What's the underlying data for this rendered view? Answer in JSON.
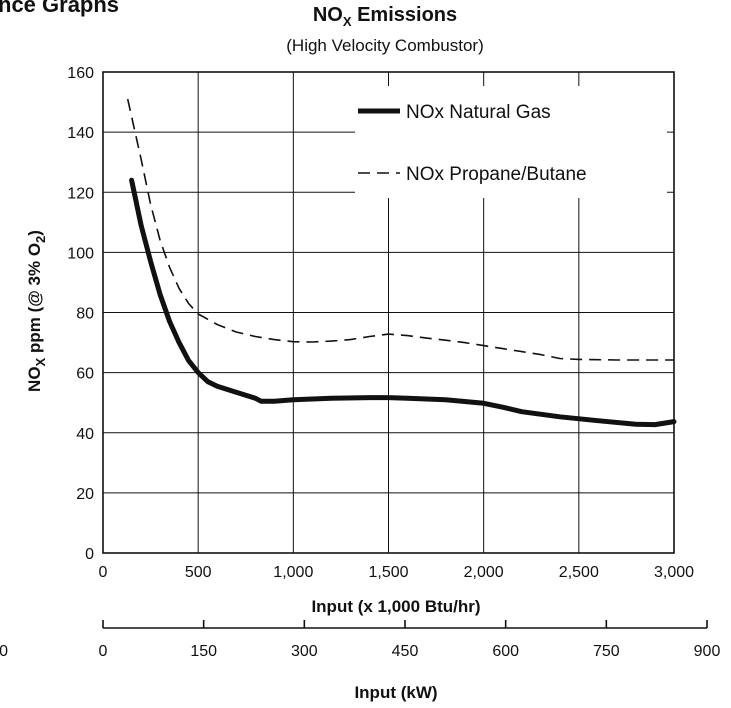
{
  "page": {
    "heading": "nce Graphs"
  },
  "chart_data": {
    "type": "line",
    "title": "NO",
    "title_sub": "X",
    "title_rest": " Emissions",
    "subtitle": "(High Velocity Combustor)",
    "ylabel": {
      "a": "NO",
      "a_sub": "X",
      "b": " ppm (@ 3% O",
      "b_sub": "2",
      "c": ")"
    },
    "xlabel": "Input (x 1,000 Btu/hr)",
    "xlabel2": "Input (kW)",
    "xlim": [
      0,
      3000
    ],
    "ylim": [
      0,
      160
    ],
    "x_ticks": [
      0,
      500,
      1000,
      1500,
      2000,
      2500,
      3000
    ],
    "x_tick_labels": [
      "0",
      "500",
      "1,000",
      "1,500",
      "2,000",
      "2,500",
      "3,000"
    ],
    "y_ticks": [
      0,
      20,
      40,
      60,
      80,
      100,
      120,
      140,
      160
    ],
    "y_tick_labels": [
      "0",
      "20",
      "40",
      "60",
      "80",
      "100",
      "120",
      "140",
      "160"
    ],
    "secondary_axis": {
      "xlim": [
        0,
        900
      ],
      "ticks": [
        0,
        150,
        300,
        450,
        600,
        750,
        900
      ],
      "tick_labels": [
        "0",
        "150",
        "300",
        "450",
        "600",
        "750",
        "900"
      ],
      "cut_label": "0"
    },
    "grid": true,
    "legend_position": "top-right",
    "series": [
      {
        "name": "NOx Natural Gas",
        "style": "solid",
        "color": "#111111",
        "x": [
          150,
          200,
          250,
          300,
          350,
          400,
          450,
          500,
          550,
          600,
          700,
          800,
          830,
          900,
          1000,
          1200,
          1400,
          1500,
          1600,
          1800,
          2000,
          2100,
          2200,
          2400,
          2600,
          2800,
          2900,
          3000
        ],
        "y": [
          124,
          109,
          97,
          86,
          77,
          70,
          64,
          60,
          57,
          55.5,
          53.5,
          51.5,
          50.5,
          50.5,
          51,
          51.5,
          51.7,
          51.7,
          51.5,
          51,
          49.8,
          48.5,
          47,
          45.3,
          44,
          42.8,
          42.7,
          43.7
        ]
      },
      {
        "name": "NOx Propane/Butane",
        "style": "dashed",
        "color": "#111111",
        "x": [
          130,
          200,
          250,
          300,
          350,
          400,
          450,
          500,
          600,
          700,
          800,
          900,
          1000,
          1100,
          1200,
          1300,
          1400,
          1500,
          1600,
          1700,
          1800,
          1900,
          2000,
          2100,
          2200,
          2300,
          2400,
          2500,
          2600,
          2700,
          2800,
          2900,
          3000
        ],
        "y": [
          151,
          131,
          116,
          104,
          95,
          88,
          83,
          79.5,
          76,
          73.5,
          72,
          71,
          70.3,
          70.2,
          70.5,
          71,
          72,
          72.8,
          72.3,
          71.5,
          70.8,
          70,
          69,
          68,
          67,
          66,
          64.7,
          64.4,
          64.3,
          64.2,
          64.2,
          64.2,
          64.2
        ]
      }
    ]
  }
}
